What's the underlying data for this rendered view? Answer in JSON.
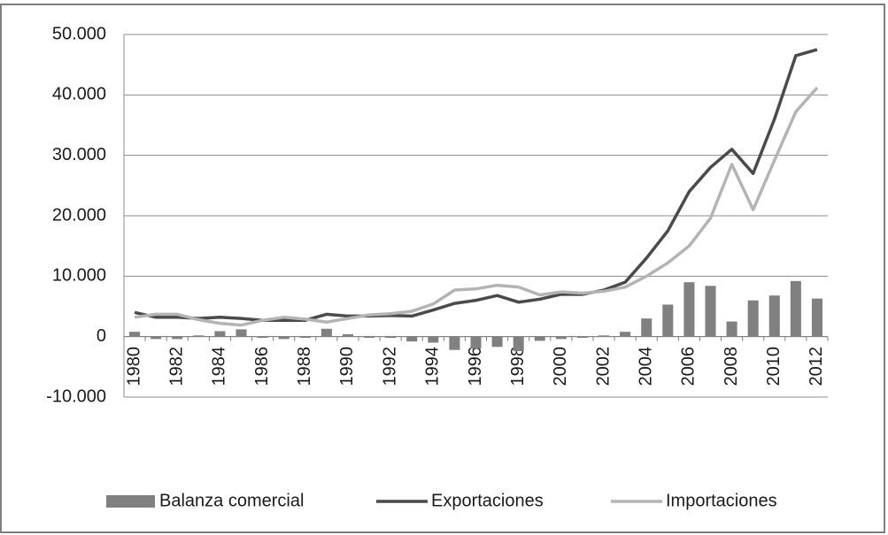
{
  "chart_data": {
    "type": "bar-line",
    "categories": [
      "1980",
      null,
      "1982",
      null,
      "1984",
      null,
      "1986",
      null,
      "1988",
      null,
      "1990",
      null,
      "1992",
      null,
      "1994",
      null,
      "1996",
      null,
      "1998",
      null,
      "2000",
      null,
      "2002",
      null,
      "2004",
      null,
      "2006",
      null,
      "2008",
      null,
      "2010",
      null,
      "2012"
    ],
    "series": [
      {
        "name": "Balanza comercial",
        "type": "bar",
        "color": "#808080",
        "values": [
          800,
          -400,
          -400,
          200,
          900,
          1200,
          -200,
          -400,
          -200,
          1300,
          400,
          -200,
          -200,
          -800,
          -1000,
          -2200,
          -2000,
          -1700,
          -2400,
          -700,
          -400,
          -200,
          200,
          800,
          3000,
          5300,
          9000,
          8400,
          2500,
          6000,
          6800,
          9200,
          6300
        ]
      },
      {
        "name": "Exportaciones",
        "type": "line",
        "color": "#4a4a4a",
        "values": [
          4000,
          3200,
          3200,
          3000,
          3200,
          3000,
          2700,
          2700,
          2700,
          3700,
          3400,
          3400,
          3500,
          3400,
          4400,
          5500,
          6000,
          6800,
          5700,
          6200,
          7000,
          7000,
          7700,
          9000,
          13000,
          17500,
          24000,
          28000,
          31000,
          27000,
          36000,
          46500,
          47500
        ]
      },
      {
        "name": "Importaciones",
        "type": "line",
        "color": "#b4b4b4",
        "values": [
          3200,
          3700,
          3700,
          2800,
          2200,
          1900,
          2700,
          3200,
          2900,
          2400,
          3000,
          3600,
          3800,
          4200,
          5400,
          7700,
          7900,
          8500,
          8200,
          6900,
          7400,
          7200,
          7500,
          8200,
          10000,
          12200,
          15000,
          19600,
          28500,
          21000,
          29200,
          37200,
          41200
        ]
      }
    ],
    "ylim": [
      -10000,
      50000
    ],
    "yticks": [
      {
        "value": -10000,
        "label": "-10.000"
      },
      0,
      {
        "value": 10000,
        "label": "10.000"
      },
      {
        "value": 20000,
        "label": "20.000"
      },
      {
        "value": 30000,
        "label": "30.000"
      },
      {
        "value": 40000,
        "label": "40.000"
      },
      {
        "value": 50000,
        "label": "50.000"
      }
    ],
    "grid": true,
    "legend": "bottom"
  }
}
